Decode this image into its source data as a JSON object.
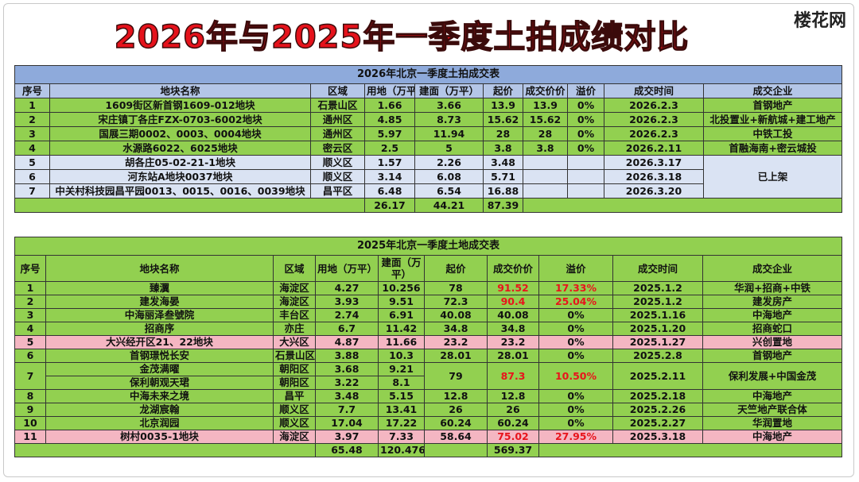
{
  "header": {
    "title": "2026年与2025年一季度土拍成绩对比",
    "logo": "楼花网"
  },
  "table_2026": {
    "title": "2026年北京一季度土拍成交表",
    "columns": [
      "序号",
      "地块名称",
      "区域",
      "用地（万平）",
      "建面（万平）",
      "起价",
      "成交价价",
      "溢价",
      "成交时间",
      "成交企业"
    ],
    "rows": [
      [
        "1",
        "1609街区新首钢1609-012地块",
        "石景山区",
        "1.66",
        "3.66",
        "13.9",
        "13.9",
        "0%",
        "2026.2.3",
        "首钢地产"
      ],
      [
        "2",
        "宋庄镇丁各庄FZX-0703-6002地块",
        "通州区",
        "4.85",
        "8.73",
        "15.62",
        "15.62",
        "0%",
        "2026.2.3",
        "北投置业+新航城+建工地产"
      ],
      [
        "3",
        "国展三期0002、0003、0004地块",
        "通州区",
        "5.97",
        "11.94",
        "28",
        "28",
        "0%",
        "2026.2.3",
        "中铁工投"
      ],
      [
        "4",
        "水源路6022、6025地块",
        "密云区",
        "2.5",
        "5",
        "3.8",
        "3.8",
        "0%",
        "2026.2.11",
        "首融海南+密云城投"
      ],
      [
        "5",
        "胡各庄05-02-21-1地块",
        "顺义区",
        "1.57",
        "2.26",
        "3.48",
        "2026.3.17",
        "已上架"
      ],
      [
        "6",
        "河东站A地块0037地块",
        "顺义区",
        "3.14",
        "6.08",
        "5.71",
        "2026.3.18"
      ],
      [
        "7",
        "中关村科技园昌平园0013、0015、0016、0039地块",
        "昌平区",
        "6.48",
        "6.54",
        "16.88",
        "2026.3.20"
      ]
    ],
    "totals": [
      "26.17",
      "44.21",
      "87.39"
    ]
  },
  "table_2025": {
    "title": "2025年北京一季度土地成交表",
    "columns": [
      "序号",
      "地块名称",
      "区域",
      "用地（万平）",
      "建面（万平）",
      "起价",
      "成交价价",
      "溢价",
      "成交时间",
      "成交企业"
    ],
    "rows": [
      [
        "1",
        "臻瀷",
        "海淀区",
        "4.27",
        "10.256",
        "78",
        "91.52",
        "17.33%",
        "2025.1.2",
        "华润+招商+中铁"
      ],
      [
        "2",
        "建发海晏",
        "海淀区",
        "3.93",
        "9.51",
        "72.3",
        "90.4",
        "25.04%",
        "2025.1.2",
        "建发房产"
      ],
      [
        "3",
        "中海丽泽叁號院",
        "丰台区",
        "2.74",
        "6.91",
        "40.08",
        "40.08",
        "0%",
        "2025.1.16",
        "中海地产"
      ],
      [
        "4",
        "招商序",
        "亦庄",
        "6.7",
        "11.42",
        "34.8",
        "34.8",
        "0%",
        "2025.1.20",
        "招商蛇口"
      ],
      [
        "5",
        "大兴经开区21、22地块",
        "大兴区",
        "4.87",
        "11.66",
        "23.2",
        "23.2",
        "0%",
        "2025.1.27",
        "兴创置地"
      ],
      [
        "6",
        "首钢璟悦长安",
        "石景山区",
        "3.88",
        "10.3",
        "28.01",
        "28.01",
        "0%",
        "2025.2.8",
        "首钢地产"
      ],
      [
        "7",
        "金茂满曜",
        "朝阳区",
        "3.68",
        "9.21",
        "79",
        "87.3",
        "10.50%",
        "2025.2.11",
        "保利发展+中国金茂"
      ],
      [
        "保利朝观天珺",
        "朝阳区",
        "3.22",
        "8.1"
      ],
      [
        "8",
        "中海未来之境",
        "昌平",
        "3.48",
        "5.15",
        "12.8",
        "12.8",
        "0%",
        "2025.2.18",
        "中海地产"
      ],
      [
        "9",
        "龙湖宸翰",
        "顺义区",
        "7.7",
        "13.41",
        "26",
        "26",
        "0%",
        "2025.2.26",
        "天竺地产联合体"
      ],
      [
        "10",
        "北京润园",
        "顺义区",
        "17.04",
        "17.22",
        "60.24",
        "60.24",
        "0%",
        "2025.2.27",
        "华润置地"
      ],
      [
        "11",
        "树村0035-1地块",
        "海淀区",
        "3.97",
        "7.33",
        "58.64",
        "75.02",
        "27.95%",
        "2025.3.18",
        "中海地产"
      ]
    ],
    "totals": [
      "65.48",
      "120.476",
      "569.37"
    ]
  }
}
